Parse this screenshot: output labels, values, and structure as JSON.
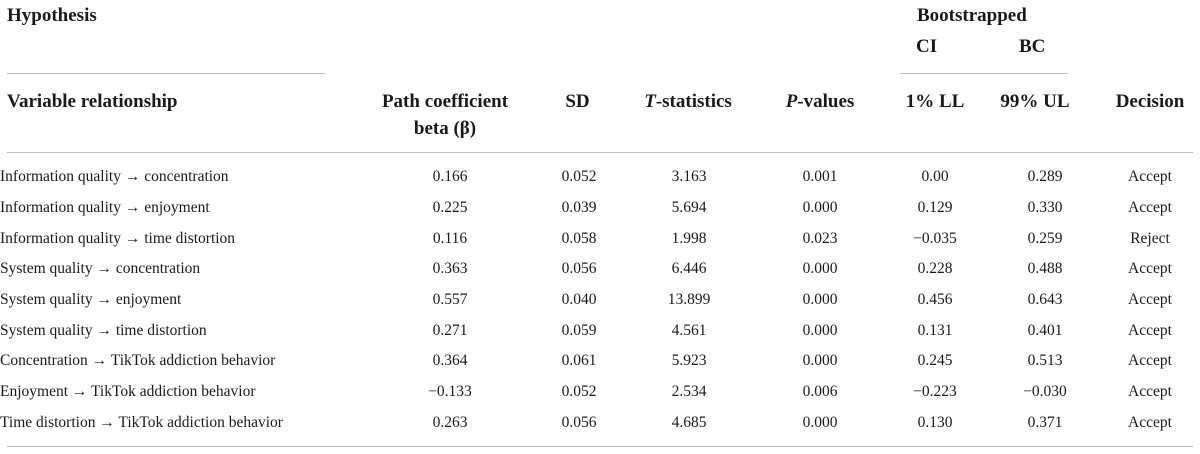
{
  "headers": {
    "hypothesis": "Hypothesis",
    "bootstrapped": "Bootstrapped",
    "ci": "CI",
    "bc": "BC",
    "variable_relationship": "Variable relationship",
    "path_coefficient_line1": "Path coefficient",
    "path_coefficient_line2": "beta (β)",
    "sd": "SD",
    "t_letter": "T",
    "t_rest": "-statistics",
    "p_letter": "P",
    "p_rest": "-values",
    "ll": "1% LL",
    "ul": "99% UL",
    "decision": "Decision"
  },
  "rows": [
    {
      "relationship": "Information quality → concentration",
      "beta": "0.166",
      "sd": "0.052",
      "t": "3.163",
      "p": "0.001",
      "ll": "0.00",
      "ul": "0.289",
      "decision": "Accept"
    },
    {
      "relationship": "Information quality → enjoyment",
      "beta": "0.225",
      "sd": "0.039",
      "t": "5.694",
      "p": "0.000",
      "ll": "0.129",
      "ul": "0.330",
      "decision": "Accept"
    },
    {
      "relationship": "Information quality → time distortion",
      "beta": "0.116",
      "sd": "0.058",
      "t": "1.998",
      "p": "0.023",
      "ll": "−0.035",
      "ul": "0.259",
      "decision": "Reject"
    },
    {
      "relationship": "System quality → concentration",
      "beta": "0.363",
      "sd": "0.056",
      "t": "6.446",
      "p": "0.000",
      "ll": "0.228",
      "ul": "0.488",
      "decision": "Accept"
    },
    {
      "relationship": "System quality → enjoyment",
      "beta": "0.557",
      "sd": "0.040",
      "t": "13.899",
      "p": "0.000",
      "ll": "0.456",
      "ul": "0.643",
      "decision": "Accept"
    },
    {
      "relationship": "System quality → time distortion",
      "beta": "0.271",
      "sd": "0.059",
      "t": "4.561",
      "p": "0.000",
      "ll": "0.131",
      "ul": "0.401",
      "decision": "Accept"
    },
    {
      "relationship": "Concentration → TikTok addiction behavior",
      "beta": "0.364",
      "sd": "0.061",
      "t": "5.923",
      "p": "0.000",
      "ll": "0.245",
      "ul": "0.513",
      "decision": "Accept"
    },
    {
      "relationship": "Enjoyment → TikTok addiction behavior",
      "beta": "−0.133",
      "sd": "0.052",
      "t": "2.534",
      "p": "0.006",
      "ll": "−0.223",
      "ul": "−0.030",
      "decision": "Accept"
    },
    {
      "relationship": "Time distortion → TikTok addiction behavior",
      "beta": "0.263",
      "sd": "0.056",
      "t": "4.685",
      "p": "0.000",
      "ll": "0.130",
      "ul": "0.371",
      "decision": "Accept"
    }
  ]
}
